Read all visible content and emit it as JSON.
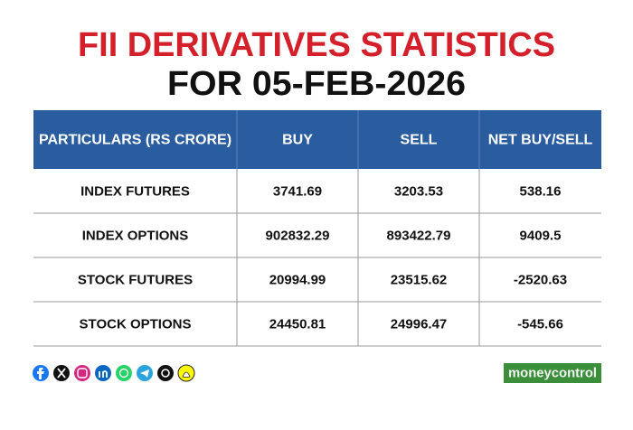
{
  "header": {
    "title_line1": "FII DERIVATIVES STATISTICS",
    "title_line2": "FOR 05-FEB-2026"
  },
  "table": {
    "columns": [
      "PARTICULARS (RS CRORE)",
      "BUY",
      "SELL",
      "NET BUY/SELL"
    ],
    "rows": [
      [
        "INDEX FUTURES",
        "3741.69",
        "3203.53",
        "538.16"
      ],
      [
        "INDEX OPTIONS",
        "902832.29",
        "893422.79",
        "9409.5"
      ],
      [
        "STOCK FUTURES",
        "20994.99",
        "23515.62",
        "-2520.63"
      ],
      [
        "STOCK OPTIONS",
        "24450.81",
        "24996.47",
        "-545.66"
      ]
    ]
  },
  "footer": {
    "brand": "moneycontrol"
  }
}
